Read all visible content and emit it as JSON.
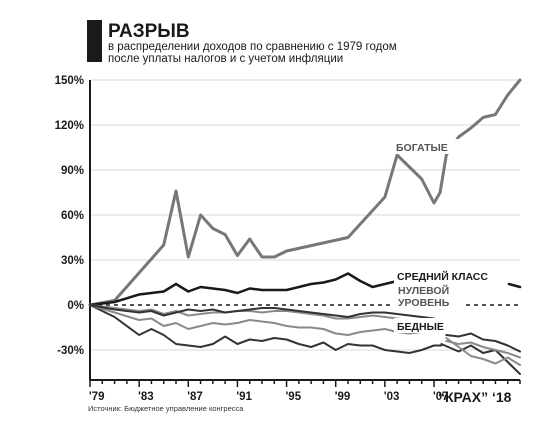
{
  "header": {
    "title": "РАЗРЫВ",
    "subtitle_line1": "в распределении доходов по сравнению с 1979 годом",
    "subtitle_line2": "после уплаты налогов и с учетом инфляции"
  },
  "source": "Источник: Бюджетное управление конгресса",
  "brand": "“КРАХ” ‘18",
  "colors": {
    "rich": "#777777",
    "middle": "#1a1a1a",
    "poor_dark": "#333333",
    "poor_light": "#8a8a8a",
    "axis": "#1a1a1a",
    "grid": "#d8d8d8"
  },
  "chart_data": {
    "type": "line",
    "title": "РАЗРЫВ",
    "xlim": [
      1979,
      2014
    ],
    "ylim": [
      -50,
      150
    ],
    "yticks": [
      -30,
      0,
      30,
      60,
      90,
      120,
      150
    ],
    "ytick_labels": [
      "-30%",
      "0%",
      "30%",
      "60%",
      "90%",
      "120%",
      "150%"
    ],
    "xticks": [
      1979,
      1983,
      1987,
      1991,
      1995,
      1999,
      2003,
      2007
    ],
    "xtick_labels": [
      "'79",
      "'83",
      "'87",
      "'91",
      "'95",
      "'99",
      "'03",
      "'07"
    ],
    "zero_line": {
      "y": 0,
      "label_line1": "НУЛЕВОЙ",
      "label_line2": "УРОВЕНЬ"
    },
    "annotations": {
      "rich": "БОГАТЫЕ",
      "middle": "СРЕДНИЙ КЛАСС",
      "poor": "БЕДНЫЕ"
    },
    "series": [
      {
        "key": "rich",
        "color_key": "rich",
        "width": 3,
        "segments": [
          {
            "x": [
              1979,
              1981,
              1985,
              1986,
              1987,
              1988,
              1989,
              1990,
              1991,
              1992,
              1993,
              1994,
              1995,
              2000,
              2003,
              2004,
              2005,
              2006,
              2007,
              2007.5,
              2008,
              2009,
              2010,
              2011,
              2012,
              2013,
              2014
            ],
            "y": [
              0,
              3,
              40,
              76,
              32,
              60,
              51,
              47,
              33,
              44,
              32,
              32,
              36,
              45,
              72,
              100,
              92,
              84,
              68,
              75,
              100,
              112,
              118,
              125,
              127,
              140,
              150
            ]
          }
        ]
      },
      {
        "key": "middle",
        "color_key": "middle",
        "width": 2.5,
        "segments": [
          {
            "x": [
              1979,
              1981,
              1983,
              1985,
              1986,
              1987,
              1988,
              1989,
              1990,
              1991,
              1992,
              1993,
              1994,
              1995,
              1996,
              1997,
              1998,
              1999,
              2000,
              2001,
              2002,
              2003,
              2004,
              2005,
              2006,
              2006.6
            ],
            "y": [
              0,
              2,
              7,
              9,
              14,
              9,
              12,
              11,
              10,
              8,
              11,
              10,
              10,
              10,
              12,
              14,
              15,
              17,
              21,
              16,
              12,
              14,
              16,
              19,
              22,
              16
            ]
          },
          {
            "x": [
              2013.1,
              2014
            ],
            "y": [
              14,
              12
            ]
          }
        ]
      },
      {
        "key": "poor_a",
        "color_key": "poor_dark",
        "width": 2,
        "segments": [
          {
            "x": [
              1979,
              1981,
              1983,
              1984,
              1985,
              1986,
              1987,
              1988,
              1989,
              1990,
              1991,
              1992,
              1993,
              1994,
              1995,
              1996,
              1997,
              1998,
              1999,
              2000,
              2001,
              2002,
              2003,
              2004,
              2005,
              2006,
              2007,
              2007.6
            ],
            "y": [
              0,
              -8,
              -20,
              -16,
              -20,
              -26,
              -27,
              -28,
              -26,
              -21,
              -26,
              -23,
              -24,
              -22,
              -23,
              -26,
              -28,
              -25,
              -30,
              -26,
              -27,
              -27,
              -30,
              -31,
              -32,
              -30,
              -27,
              -27
            ]
          },
          {
            "x": [
              2007.6,
              2009,
              2010,
              2011,
              2012,
              2013,
              2014
            ],
            "y": [
              -26,
              -31,
              -27,
              -32,
              -30,
              -38,
              -46
            ]
          }
        ]
      },
      {
        "key": "poor_b",
        "color_key": "poor_light",
        "width": 2,
        "segments": [
          {
            "x": [
              1979,
              1981,
              1983,
              1984,
              1985,
              1986,
              1987,
              1988,
              1989,
              1990,
              1991,
              1992,
              1993,
              1994,
              1995,
              1996,
              1997,
              1998,
              1999,
              2000,
              2001,
              2002,
              2003,
              2004,
              2005,
              2006,
              2007
            ],
            "y": [
              0,
              -5,
              -10,
              -9,
              -14,
              -12,
              -16,
              -14,
              -12,
              -13,
              -12,
              -10,
              -11,
              -12,
              -14,
              -15,
              -15,
              -16,
              -19,
              -20,
              -18,
              -17,
              -16,
              -18,
              -19,
              -18,
              -17
            ]
          },
          {
            "x": [
              2008,
              2009,
              2010,
              2011,
              2012,
              2013,
              2014
            ],
            "y": [
              -22,
              -28,
              -34,
              -36,
              -39,
              -35,
              -40
            ]
          }
        ]
      },
      {
        "key": "poor_c",
        "color_key": "poor_light",
        "width": 2,
        "segments": [
          {
            "x": [
              1979,
              1981,
              1983,
              1984,
              1985,
              1986,
              1987,
              1988,
              1989,
              1990,
              1991,
              1992,
              1993,
              1994,
              1995,
              1996,
              1997,
              1998,
              1999,
              2000,
              2001,
              2002,
              2003,
              2004,
              2005,
              2006,
              2007
            ],
            "y": [
              0,
              -2,
              -4,
              -3,
              -6,
              -4,
              -7,
              -6,
              -5,
              -5,
              -4,
              -4,
              -5,
              -4,
              -4,
              -5,
              -6,
              -7,
              -9,
              -9,
              -8,
              -7,
              -8,
              -9,
              -10,
              -11,
              -12
            ]
          },
          {
            "x": [
              2008,
              2009,
              2010,
              2011,
              2012,
              2013,
              2014
            ],
            "y": [
              -24,
              -26,
              -25,
              -28,
              -30,
              -32,
              -35
            ]
          }
        ]
      },
      {
        "key": "poor_d",
        "color_key": "poor_dark",
        "width": 2,
        "segments": [
          {
            "x": [
              1979,
              1981,
              1983,
              1984,
              1985,
              1986,
              1987,
              1988,
              1989,
              1990,
              1991,
              1992,
              1993,
              1994,
              1995,
              1996,
              1997,
              1998,
              1999,
              2000,
              2001,
              2002,
              2003,
              2004,
              2005,
              2006,
              2007
            ],
            "y": [
              0,
              -3,
              -5,
              -4,
              -7,
              -5,
              -3,
              -4,
              -3,
              -5,
              -4,
              -3,
              -2,
              -2,
              -3,
              -4,
              -5,
              -6,
              -7,
              -8,
              -6,
              -5,
              -5,
              -6,
              -7,
              -8,
              -9
            ]
          },
          {
            "x": [
              2008,
              2009,
              2010,
              2011,
              2012,
              2013,
              2014
            ],
            "y": [
              -20,
              -21,
              -19,
              -23,
              -24,
              -27,
              -31
            ]
          }
        ]
      }
    ]
  }
}
